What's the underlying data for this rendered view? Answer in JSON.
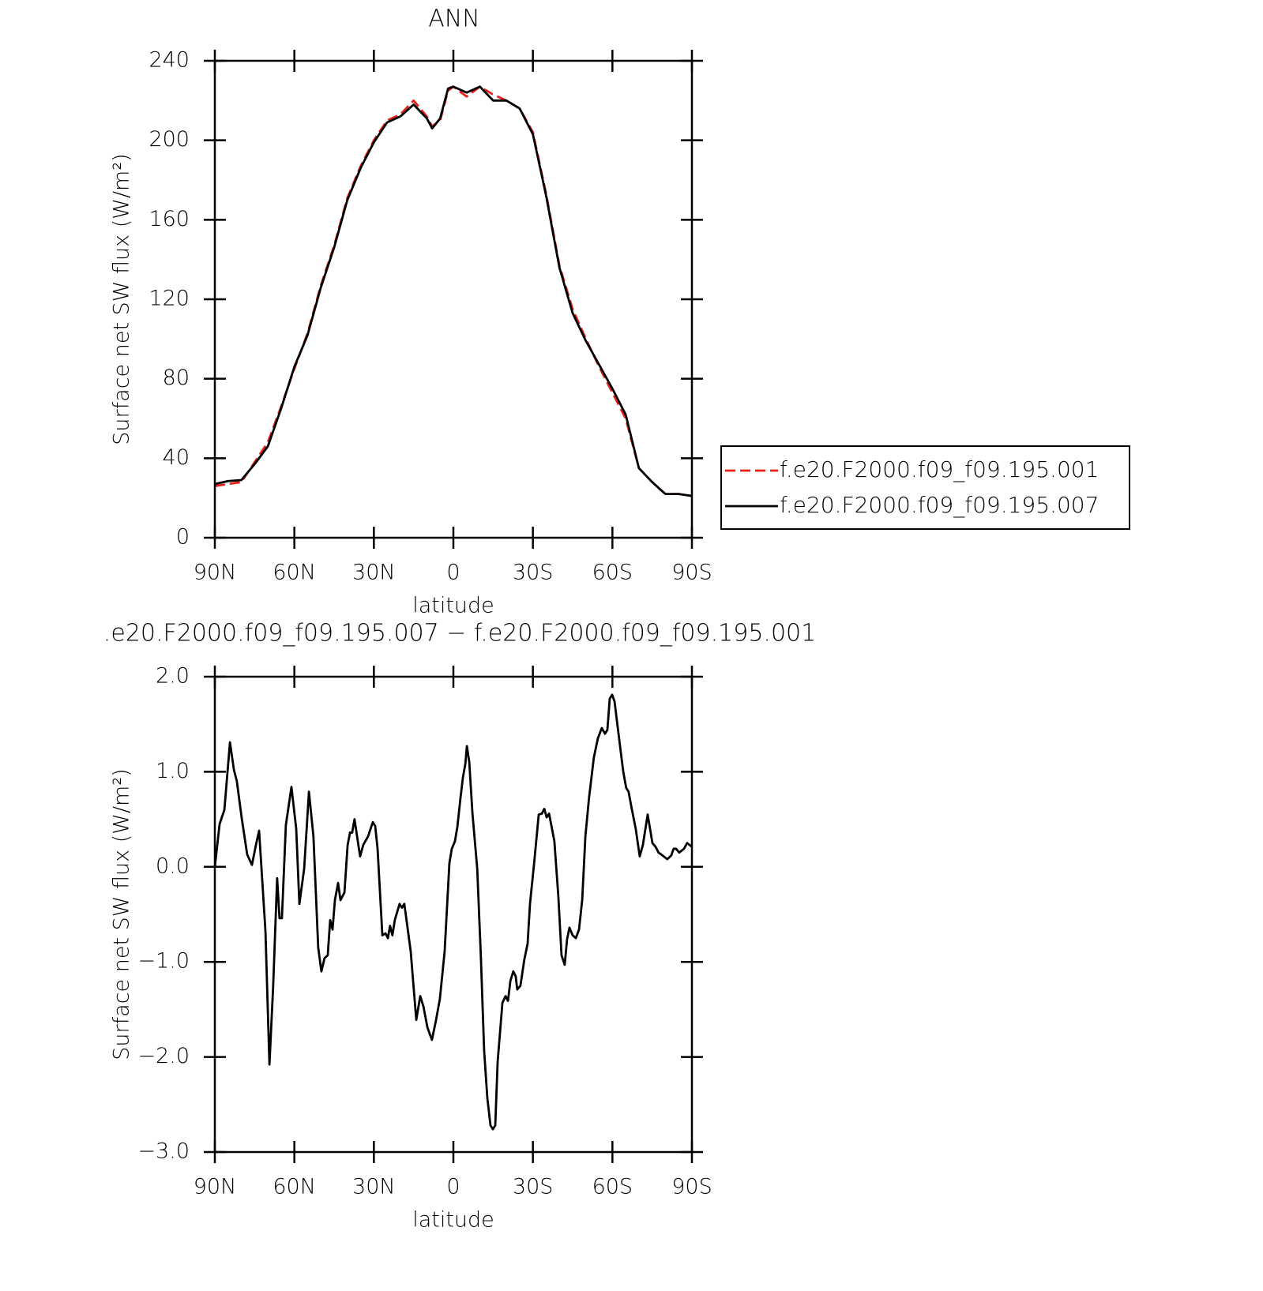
{
  "chart_data": [
    {
      "type": "line",
      "title": "ANN",
      "xlabel": "latitude",
      "ylabel": "Surface net SW flux (W/m²)",
      "x": [
        90,
        85,
        80,
        75,
        70,
        65,
        60,
        55,
        50,
        45,
        40,
        35,
        30,
        25,
        20,
        15,
        10,
        8,
        5,
        2,
        0,
        -5,
        -10,
        -15,
        -20,
        -25,
        -30,
        -35,
        -40,
        -45,
        -50,
        -55,
        -60,
        -65,
        -70,
        -75,
        -80,
        -85,
        -90
      ],
      "series": [
        {
          "name": "f.e20.F2000.f09_f09.195.001",
          "color": "#e8201c",
          "dash": true,
          "values": [
            26,
            27,
            28,
            38,
            48,
            66,
            85,
            103,
            127,
            147,
            171,
            187,
            200,
            210,
            213,
            220,
            212,
            207,
            210,
            225,
            227,
            222,
            227,
            223,
            220,
            216,
            204,
            173,
            137,
            115,
            100,
            86,
            73,
            60,
            35,
            28,
            22,
            22,
            21
          ]
        },
        {
          "name": "f.e20.F2000.f09_f09.195.007",
          "color": "#000000",
          "dash": false,
          "values": [
            27,
            28.5,
            29,
            37,
            46,
            65,
            86,
            102,
            126,
            146,
            170,
            186,
            199,
            209,
            212,
            218,
            211,
            206,
            211,
            226,
            227,
            224,
            227,
            220,
            220,
            216,
            203,
            172,
            136,
            113,
            99,
            87,
            75,
            62,
            35,
            28,
            22,
            22,
            21
          ]
        }
      ],
      "xlim": [
        90,
        -90
      ],
      "xticks": [
        {
          "value": 90,
          "label": "90N"
        },
        {
          "value": 60,
          "label": "60N"
        },
        {
          "value": 30,
          "label": "30N"
        },
        0,
        {
          "value": -30,
          "label": "30S"
        },
        {
          "value": -60,
          "label": "60S"
        },
        {
          "value": -90,
          "label": "90S"
        }
      ],
      "ylim": [
        0,
        240
      ],
      "yticks": [
        0,
        40,
        80,
        120,
        160,
        200,
        240
      ],
      "legend": "right"
    },
    {
      "type": "line",
      "title": ".e20.F2000.f09_f09.195.007 − f.e20.F2000.f09_f09.195.001",
      "xlabel": "latitude",
      "ylabel": "Surface net SW flux (W/m²)",
      "x": [
        90,
        88.2,
        86.4,
        84.3,
        82.8,
        81.7,
        79.9,
        77.8,
        76,
        74.5,
        73.3,
        70.9,
        69.4,
        68,
        66.5,
        65.6,
        64.7,
        63.2,
        61.1,
        59.3,
        58.1,
        56.3,
        54.5,
        52.8,
        51,
        49.8,
        48.6,
        47.4,
        46.5,
        45.6,
        44.7,
        43.5,
        42.6,
        41.1,
        39.9,
        39,
        38.2,
        37.3,
        35.2,
        34,
        32.2,
        30.4,
        29.5,
        28.6,
        26.8,
        25.6,
        24.7,
        23.9,
        23,
        22.1,
        20.3,
        19.4,
        18.5,
        16.1,
        14,
        12.5,
        11.3,
        9.8,
        8.1,
        6.6,
        5.1,
        3.3,
        1.5,
        0.6,
        -0.6,
        -1.5,
        -2.7,
        -3.6,
        -4.5,
        -5.1,
        -6,
        -7.2,
        -9,
        -10.4,
        -11.6,
        -12.8,
        -14,
        -14.9,
        -15.8,
        -16.7,
        -18.5,
        -19.7,
        -20.6,
        -21.5,
        -22.6,
        -23.5,
        -24.1,
        -25.3,
        -26.8,
        -28,
        -28.9,
        -30.4,
        -32.2,
        -33.4,
        -34.3,
        -35.2,
        -36.1,
        -38.1,
        -39.6,
        -40.8,
        -42,
        -42.9,
        -43.8,
        -45,
        -46.2,
        -47.4,
        -48.6,
        -49.8,
        -51.2,
        -53,
        -54.5,
        -56,
        -57.2,
        -58.1,
        -59,
        -59.9,
        -60.8,
        -62.3,
        -64.1,
        -65.2,
        -66.1,
        -67.3,
        -68.8,
        -70.3,
        -71.5,
        -73.3,
        -75.1,
        -76.3,
        -77.4,
        -78.9,
        -80.7,
        -82.2,
        -83.1,
        -84,
        -85.2,
        -87,
        -88.2,
        -90
      ],
      "series": [
        {
          "color": "#000000",
          "dash": false,
          "values": [
            0.0,
            0.45,
            0.6,
            1.31,
            1.02,
            0.9,
            0.52,
            0.13,
            0.02,
            0.23,
            0.38,
            -0.68,
            -2.08,
            -1.26,
            -0.12,
            -0.54,
            -0.54,
            0.44,
            0.84,
            0.4,
            -0.39,
            -0.02,
            0.79,
            0.32,
            -0.85,
            -1.1,
            -0.96,
            -0.93,
            -0.56,
            -0.66,
            -0.35,
            -0.17,
            -0.35,
            -0.27,
            0.23,
            0.36,
            0.36,
            0.5,
            0.11,
            0.23,
            0.32,
            0.47,
            0.43,
            0.19,
            -0.72,
            -0.7,
            -0.75,
            -0.62,
            -0.72,
            -0.56,
            -0.39,
            -0.43,
            -0.39,
            -0.89,
            -1.61,
            -1.36,
            -1.47,
            -1.69,
            -1.82,
            -1.62,
            -1.39,
            -0.89,
            0.04,
            0.19,
            0.27,
            0.42,
            0.73,
            0.94,
            1.08,
            1.27,
            1.1,
            0.56,
            -0.02,
            -0.97,
            -1.93,
            -2.43,
            -2.72,
            -2.76,
            -2.72,
            -2.05,
            -1.43,
            -1.36,
            -1.41,
            -1.2,
            -1.1,
            -1.15,
            -1.29,
            -1.25,
            -0.97,
            -0.81,
            -0.39,
            0.02,
            0.55,
            0.56,
            0.61,
            0.52,
            0.56,
            0.27,
            -0.31,
            -0.93,
            -1.03,
            -0.76,
            -0.64,
            -0.72,
            -0.75,
            -0.66,
            -0.35,
            0.32,
            0.73,
            1.15,
            1.35,
            1.46,
            1.4,
            1.44,
            1.77,
            1.81,
            1.74,
            1.4,
            1.0,
            0.83,
            0.79,
            0.61,
            0.4,
            0.11,
            0.23,
            0.55,
            0.25,
            0.21,
            0.15,
            0.12,
            0.08,
            0.12,
            0.19,
            0.19,
            0.15,
            0.19,
            0.25,
            0.21
          ]
        }
      ],
      "xlim": [
        90,
        -90
      ],
      "xticks": [
        {
          "value": 90,
          "label": "90N"
        },
        {
          "value": 60,
          "label": "60N"
        },
        {
          "value": 30,
          "label": "30N"
        },
        0,
        {
          "value": -30,
          "label": "30S"
        },
        {
          "value": -60,
          "label": "60S"
        },
        {
          "value": -90,
          "label": "90S"
        }
      ],
      "ylim": [
        -3,
        2
      ],
      "yticks": [
        {
          "value": -3,
          "label": "−3.0"
        },
        {
          "value": -2,
          "label": "−2.0"
        },
        {
          "value": -1,
          "label": "−1.0"
        },
        {
          "value": 0,
          "label": "0.0"
        },
        {
          "value": 1,
          "label": "1.0"
        },
        {
          "value": 2,
          "label": "2.0"
        }
      ]
    }
  ]
}
